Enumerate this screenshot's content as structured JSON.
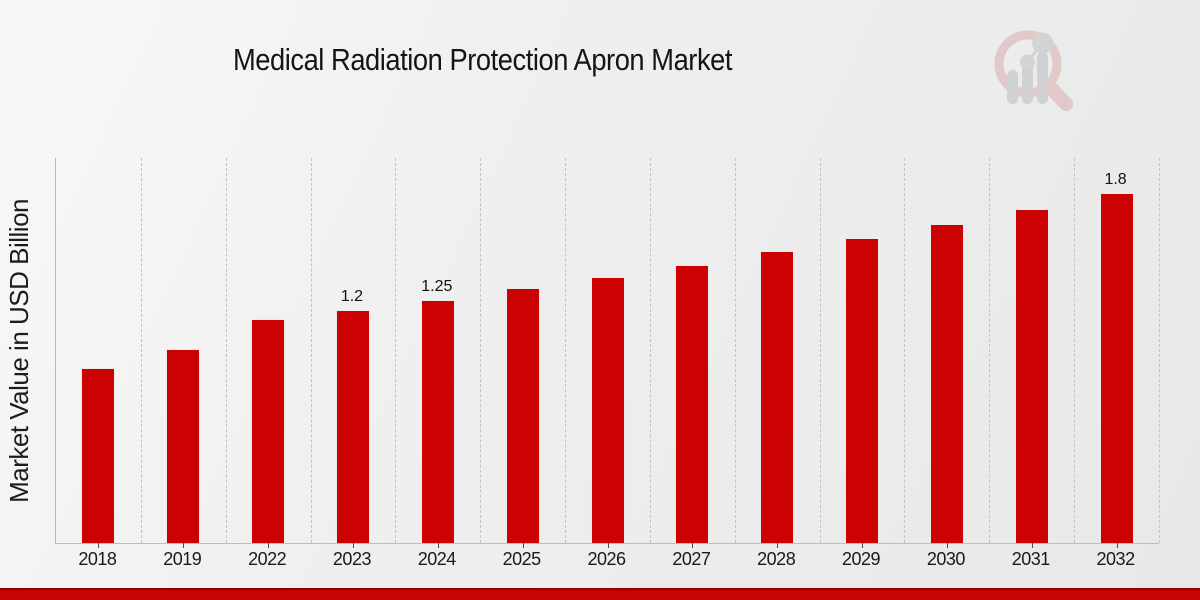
{
  "header": {
    "title": "Medical Radiation Protection Apron Market"
  },
  "branding": {
    "logo_icon": "magnifier-with-bar-chart-watermark",
    "logo_ring_color": "#d9a8a8",
    "logo_bars_color": "#b9b9b9"
  },
  "chart_data": {
    "type": "bar",
    "title": "Medical Radiation Protection Apron Market",
    "xlabel": "",
    "ylabel": "Market Value in USD Billion",
    "categories": [
      "2018",
      "2019",
      "2022",
      "2023",
      "2024",
      "2025",
      "2026",
      "2027",
      "2028",
      "2029",
      "2030",
      "2031",
      "2032"
    ],
    "values": [
      0.9,
      1.0,
      1.15,
      1.2,
      1.25,
      1.31,
      1.37,
      1.43,
      1.5,
      1.57,
      1.64,
      1.72,
      1.8
    ],
    "bar_labels": [
      "",
      "",
      "",
      "1.2",
      "1.25",
      "",
      "",
      "",
      "",
      "",
      "",
      "",
      "1.8"
    ],
    "bar_color": "#cc0202",
    "ylim": [
      0,
      1.98
    ],
    "y_axis_ticks_visible": false,
    "grid": "vertical dashed lines between categories",
    "legend": "none",
    "unit": "USD Billion"
  },
  "footer": {
    "accent_band_color": "#c60404"
  }
}
